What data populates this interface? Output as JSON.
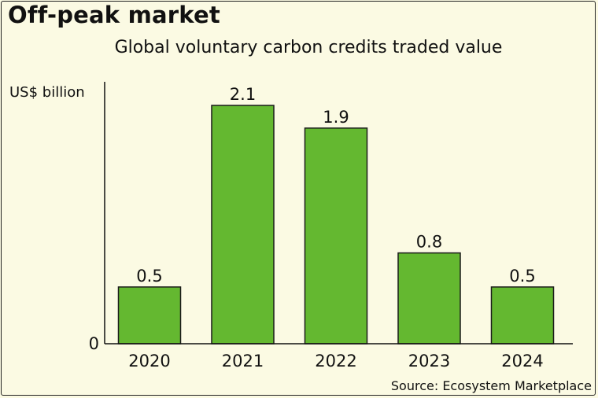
{
  "chart_data": {
    "type": "bar",
    "title": "Off-peak market",
    "subtitle": "Global voluntary carbon credits traded value",
    "ylabel": "US$ billion",
    "xlabel": "",
    "categories": [
      "2020",
      "2021",
      "2022",
      "2023",
      "2024"
    ],
    "values": [
      0.5,
      2.1,
      1.9,
      0.8,
      0.5
    ],
    "data_labels": [
      "0.5",
      "2.1",
      "1.9",
      "0.8",
      "0.5"
    ],
    "y_tick_labels": [
      "0"
    ],
    "ylim": [
      0,
      2.1
    ],
    "grid": false,
    "bar_color": "#64b830",
    "source": "Source: Ecosystem Marketplace"
  }
}
